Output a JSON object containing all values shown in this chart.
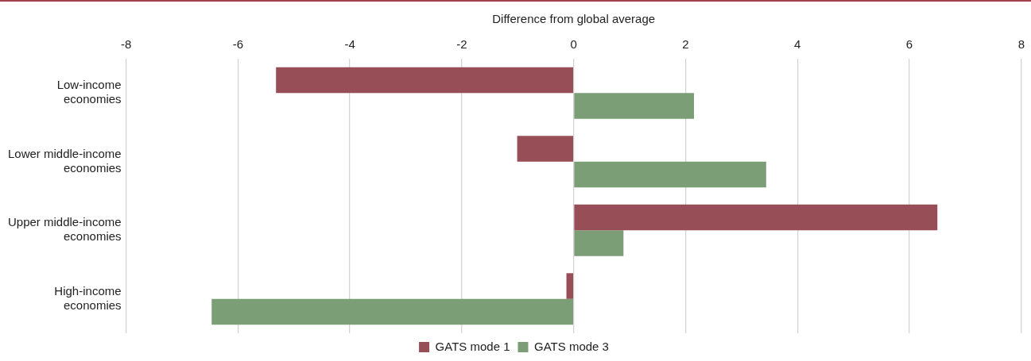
{
  "chart_data": {
    "type": "bar",
    "orientation": "horizontal",
    "xlabel": "Difference from global average",
    "categories": [
      "Low-income economies",
      "Lower middle-income economies",
      "Upper middle-income economies",
      "High-income economies"
    ],
    "series": [
      {
        "name": "GATS mode 1",
        "color": "#974e56",
        "values": [
          -5.32,
          -1.01,
          6.5,
          -0.13
        ]
      },
      {
        "name": "GATS mode 3",
        "color": "#7b9e76",
        "values": [
          2.15,
          3.44,
          0.89,
          -6.47
        ]
      }
    ],
    "xlim": [
      -8,
      8
    ],
    "xticks": [
      -8,
      -6,
      -4,
      -2,
      0,
      2,
      4,
      6,
      8
    ],
    "grid": "x",
    "legend": "bottom"
  }
}
